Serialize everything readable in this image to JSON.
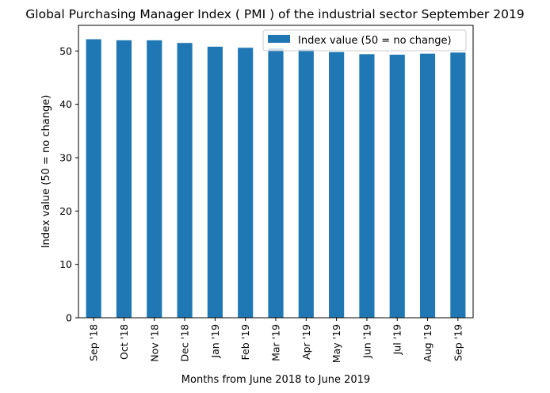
{
  "chart_data": {
    "type": "bar",
    "title": "Global Purchasing Manager Index ( PMI ) of the industrial sector September 2019",
    "xlabel": "Months from June 2018 to June 2019",
    "ylabel": "Index value (50 = no change)",
    "categories": [
      "Sep '18",
      "Oct '18",
      "Nov '18",
      "Dec '18",
      "Jan '19",
      "Feb '19",
      "Mar '19",
      "Apr '19",
      "May '19",
      "Jun '19",
      "Jul '19",
      "Aug '19",
      "Sep '19"
    ],
    "series": [
      {
        "name": "Index value (50 = no change)",
        "values": [
          52.2,
          52.0,
          52.0,
          51.5,
          50.8,
          50.6,
          50.5,
          50.3,
          49.8,
          49.4,
          49.3,
          49.5,
          49.7
        ],
        "color": "#1f77b4"
      }
    ],
    "ylim": [
      0,
      54.8
    ],
    "yticks": [
      0,
      10,
      20,
      30,
      40,
      50
    ],
    "grid": false,
    "legend_position": "top-right"
  }
}
